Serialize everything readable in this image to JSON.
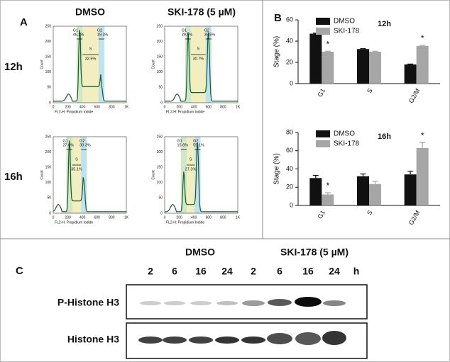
{
  "panel_a": {
    "label": "A",
    "columns": [
      "DMSO",
      "SKI-178 (5 µM)"
    ],
    "rows": [
      "12h",
      "16h"
    ],
    "y_axis_label": "Count",
    "x_axis_label": "FL2-H: Propidium Iodide",
    "xticks": [
      "0",
      "200",
      "400",
      "600",
      "800",
      "1K"
    ],
    "yticks": [
      "0",
      "50",
      "100",
      "150",
      "200",
      "250"
    ],
    "plots": [
      {
        "g1_gate": "G1",
        "g1": "46.2%",
        "s_gate": "S",
        "s": "32.5%",
        "g2_gate": "G2",
        "g2": "19.3%"
      },
      {
        "g1_gate": "G1",
        "g1": "29.5%",
        "s_gate": "S",
        "s": "30.7%",
        "g2_gate": "G2",
        "g2": "35.5%"
      },
      {
        "g1_gate": "G1",
        "g1": "27.6%",
        "s_gate": "S",
        "s": "35.1%",
        "g2_gate": "G2",
        "g2": "30.3%"
      },
      {
        "g1_gate": "G1",
        "g1": "15.6%",
        "s_gate": "S",
        "s": "27.3%",
        "g2_gate": "G2",
        "g2": "55.1%"
      }
    ]
  },
  "panel_b_label": "B",
  "chart_data": [
    {
      "type": "bar",
      "title": "12h",
      "y_label": "Stage (%)",
      "categories": [
        "G1",
        "S",
        "G2/M"
      ],
      "series": [
        {
          "name": "DMSO",
          "color": "#111111",
          "values": [
            47,
            32.5,
            18
          ],
          "errors": [
            0.5,
            0.4,
            0.4
          ]
        },
        {
          "name": "SKI-178",
          "color": "#a6a6a6",
          "values": [
            30,
            30,
            35.5
          ],
          "errors": [
            0.5,
            0.5,
            0.5
          ],
          "significance": [
            "*",
            null,
            "*"
          ]
        }
      ],
      "ylim": [
        0,
        60
      ],
      "yticks": [
        0,
        20,
        40,
        60
      ],
      "legend": "upper left"
    },
    {
      "type": "bar",
      "title": "16h",
      "y_label": "Stage (%)",
      "categories": [
        "G1",
        "S",
        "G2/M"
      ],
      "series": [
        {
          "name": "DMSO",
          "color": "#111111",
          "values": [
            30,
            32,
            34
          ],
          "errors": [
            3,
            2.5,
            3.5
          ]
        },
        {
          "name": "SKI-178",
          "color": "#a6a6a6",
          "values": [
            12,
            23.5,
            63
          ],
          "errors": [
            2,
            3,
            6
          ],
          "significance": [
            "*",
            null,
            "*"
          ]
        }
      ],
      "ylim": [
        0,
        80
      ],
      "yticks": [
        0,
        20,
        40,
        60,
        80
      ],
      "legend": "upper left"
    }
  ],
  "panel_c": {
    "label": "C",
    "groups": [
      "DMSO",
      "SKI-178 (5 µM)"
    ],
    "times": [
      "2",
      "6",
      "16",
      "24",
      "2",
      "6",
      "16",
      "24"
    ],
    "unit": "h",
    "blots": [
      "P-Histone H3",
      "Histone H3"
    ]
  }
}
